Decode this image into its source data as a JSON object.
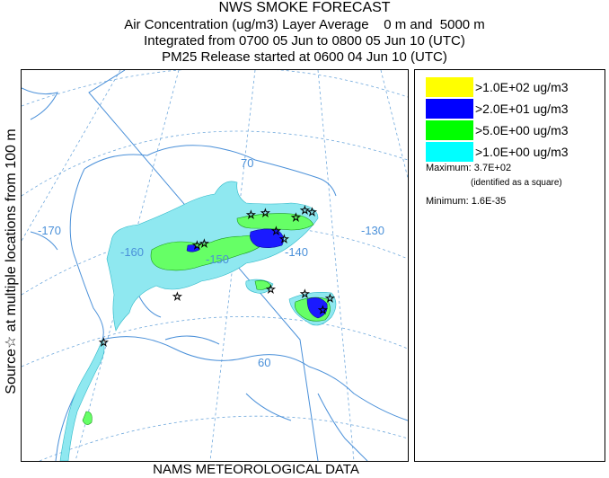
{
  "title": {
    "line1": "NWS SMOKE FORECAST",
    "line2": "Air Concentration (ug/m3) Layer Average    0 m and  5000 m",
    "line3": "Integrated from 0700 05 Jun to 0800 05 Jun 10 (UTC)",
    "line4": "PM25 Release started at 0600 04 Jun 10 (UTC)"
  },
  "side_label": "Source☆  at multiple locations    from   100 m",
  "footer": "NAMS METEOROLOGICAL DATA",
  "map": {
    "lon_labels": [
      "-170",
      "-160",
      "-150",
      "-140",
      "-130"
    ],
    "lat_labels": [
      "70",
      "60"
    ]
  },
  "legend": {
    "items": [
      {
        "label": ">1.0E+02 ug/m3",
        "color": "#ffff00"
      },
      {
        "label": ">2.0E+01 ug/m3",
        "color": "#0000ff"
      },
      {
        "label": ">5.0E+00 ug/m3",
        "color": "#00ff00"
      },
      {
        "label": ">1.0E+00 ug/m3",
        "color": "#00ffff"
      }
    ],
    "maximum_label": "Maximum:",
    "maximum_value": "3.7E+02",
    "maximum_note": "(identified as a square)",
    "minimum_label": "Minimum:",
    "minimum_value": "1.6E-35"
  },
  "colors": {
    "coast": "#4a90d9",
    "graticule": "#6fa8dc",
    "light_smoke": "#8fe8f0",
    "medium_smoke": "#66ff66",
    "heavy_smoke": "#1a1aff"
  }
}
